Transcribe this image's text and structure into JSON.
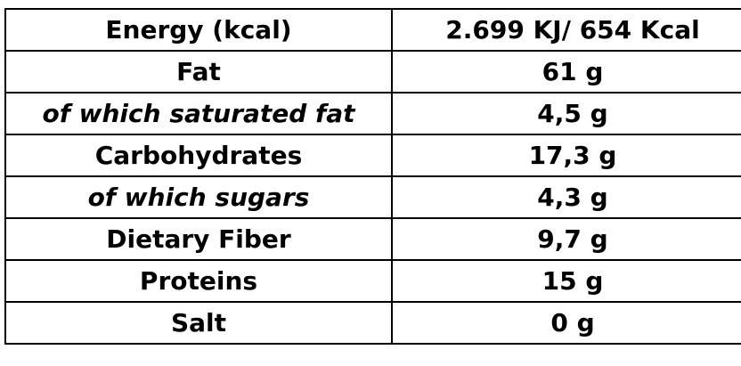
{
  "nutrition_table": {
    "rows": [
      {
        "label": "Energy (kcal)",
        "value": "2.699 KJ/ 654 Kcal",
        "italic": false
      },
      {
        "label": "Fat",
        "value": "61 g",
        "italic": false
      },
      {
        "label": "of which saturated fat",
        "value": "4,5 g",
        "italic": true
      },
      {
        "label": "Carbohydrates",
        "value": "17,3 g",
        "italic": false
      },
      {
        "label": "of which sugars",
        "value": "4,3 g",
        "italic": true
      },
      {
        "label": "Dietary Fiber",
        "value": "9,7 g",
        "italic": false
      },
      {
        "label": "Proteins",
        "value": "15 g",
        "italic": false
      },
      {
        "label": "Salt",
        "value": "0 g",
        "italic": false
      }
    ]
  }
}
